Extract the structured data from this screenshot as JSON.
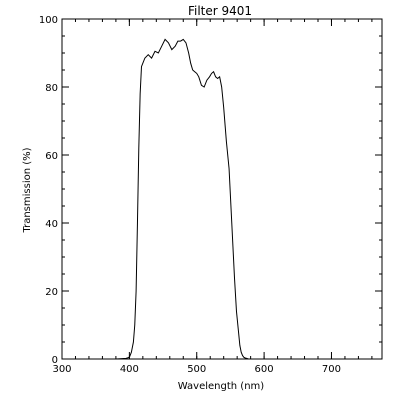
{
  "chart_data": {
    "type": "line",
    "title": "Filter 9401",
    "xlabel": "Wavelength (nm)",
    "ylabel": "Transmission (%)",
    "xlim": [
      300,
      775
    ],
    "ylim": [
      0,
      100
    ],
    "x_ticks": [
      300,
      400,
      500,
      600,
      700
    ],
    "y_ticks": [
      0,
      20,
      40,
      60,
      80,
      100
    ],
    "x_tick_labels": [
      "300",
      "400",
      "500",
      "600",
      "700"
    ],
    "y_tick_labels": [
      "0",
      "20",
      "40",
      "60",
      "80",
      "100"
    ],
    "x_minor_step": 20,
    "y_minor_step": 5,
    "grid": false,
    "colors": {
      "line": "#000000",
      "axes": "#000000",
      "background": "#ffffff"
    },
    "series": [
      {
        "x": [
          300,
          330,
          360,
          380,
          395,
          400,
          403,
          406,
          408,
          410,
          412,
          414,
          416,
          418,
          420,
          423,
          428,
          433,
          438,
          443,
          448,
          453,
          458,
          463,
          468,
          472,
          476,
          480,
          484,
          488,
          491,
          494,
          497,
          500,
          503,
          507,
          511,
          515,
          519,
          522,
          525,
          528,
          531,
          534,
          537,
          540,
          544,
          548,
          552,
          556,
          559,
          562,
          564,
          566,
          568,
          570,
          572,
          574,
          577,
          580,
          585
        ],
        "y": [
          0,
          0,
          0,
          0,
          0.2,
          0.5,
          2,
          5,
          10,
          20,
          40,
          62,
          78,
          86,
          87,
          88.5,
          89.5,
          88.5,
          90.5,
          90,
          92,
          94,
          93,
          91,
          92,
          93.5,
          93.5,
          94,
          93,
          90,
          87,
          85,
          84.5,
          84,
          83,
          80.5,
          80,
          82,
          83,
          84,
          84.5,
          83,
          82.5,
          83,
          80,
          74,
          64,
          56,
          40,
          24,
          14,
          8,
          4,
          2,
          1,
          0.5,
          0.3,
          0.2,
          0,
          0,
          0
        ]
      }
    ]
  }
}
